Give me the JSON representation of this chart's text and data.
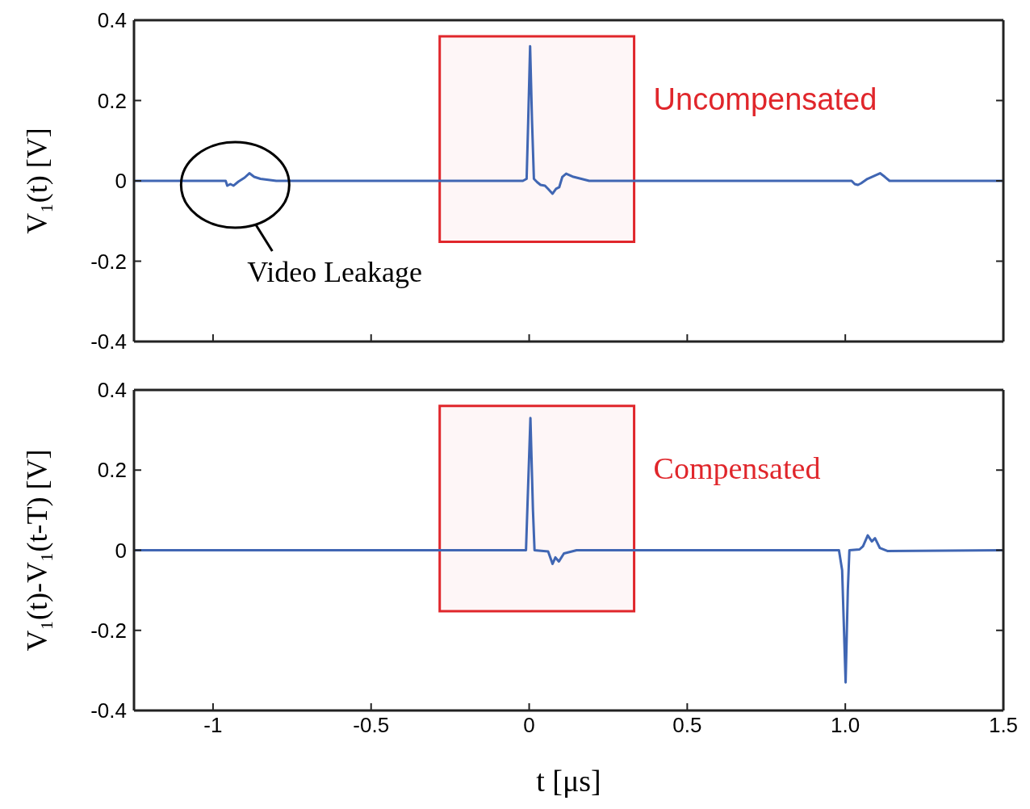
{
  "chart_data": [
    {
      "type": "line",
      "ylabel": "V₁(t) [V]",
      "xlim": [
        -1.25,
        1.5
      ],
      "ylim": [
        -0.4,
        0.4
      ],
      "xticks": [
        -1,
        -0.5,
        0,
        0.5,
        1,
        1.5
      ],
      "yticks": [
        -0.4,
        -0.2,
        0,
        0.2,
        0.4
      ],
      "tick_labels": "y",
      "grid": false,
      "legend": false,
      "marker": "none",
      "line_style": "solid",
      "series": [
        {
          "color": "#4066b3",
          "x": [
            -1.25,
            -0.96,
            -0.955,
            -0.945,
            -0.935,
            -0.92,
            -0.9,
            -0.885,
            -0.87,
            -0.85,
            -0.8,
            -0.02,
            -0.008,
            -0.003,
            0.003,
            0.009,
            0.015,
            0.025,
            0.036,
            0.05,
            0.06,
            0.074,
            0.085,
            0.095,
            0.105,
            0.117,
            0.14,
            0.19,
            1.02,
            1.03,
            1.04,
            1.05,
            1.07,
            1.09,
            1.11,
            1.125,
            1.14,
            1.5
          ],
          "values": [
            0,
            0,
            -0.012,
            -0.008,
            -0.012,
            -0.002,
            0.008,
            0.019,
            0.01,
            0.005,
            0,
            0,
            0.005,
            0.15,
            0.335,
            0.15,
            0.005,
            -0.003,
            -0.01,
            -0.012,
            -0.02,
            -0.032,
            -0.02,
            -0.016,
            0.01,
            0.018,
            0.01,
            0,
            0,
            -0.008,
            -0.01,
            -0.006,
            0.005,
            0.012,
            0.019,
            0.01,
            0,
            0
          ]
        }
      ],
      "bands": [
        {
          "axis": "x",
          "from": -0.283,
          "to": 0.332,
          "color": "#e0262b"
        }
      ],
      "annotations": [
        "Uncompensated",
        {
          "text": "Video Leakage",
          "x": -0.93,
          "y": -0.01
        }
      ]
    },
    {
      "type": "line",
      "ylabel": "V₁(t)-V₁(t-T) [V]",
      "xlabel": "t [μs]",
      "xlim": [
        -1.25,
        1.5
      ],
      "ylim": [
        -0.4,
        0.4
      ],
      "xticks": [
        -1,
        -0.5,
        0,
        0.5,
        {
          "value": 1,
          "label": "1.0"
        },
        1.5
      ],
      "yticks": [
        -0.4,
        -0.2,
        0,
        0.2,
        0.4
      ],
      "grid": false,
      "legend": false,
      "marker": "none",
      "line_style": "solid",
      "series": [
        {
          "color": "#4066b3",
          "x": [
            -1.25,
            -0.01,
            -0.005,
            0.004,
            0.012,
            0.017,
            0.06,
            0.074,
            0.083,
            0.094,
            0.11,
            0.15,
            0.98,
            0.99,
            1.001,
            1.008,
            1.013,
            1.045,
            1.056,
            1.071,
            1.084,
            1.094,
            1.109,
            1.133,
            1.5
          ],
          "values": [
            0,
            0,
            0.12,
            0.33,
            0.1,
            0,
            -0.003,
            -0.034,
            -0.018,
            -0.028,
            -0.008,
            0,
            0,
            -0.05,
            -0.33,
            -0.1,
            0,
            0.002,
            0.01,
            0.037,
            0.022,
            0.03,
            0.006,
            -0.002,
            0
          ]
        }
      ],
      "bands": [
        {
          "axis": "x",
          "from": -0.283,
          "to": 0.332,
          "color": "#e0262b"
        }
      ],
      "annotations": [
        "Compensated"
      ]
    }
  ]
}
